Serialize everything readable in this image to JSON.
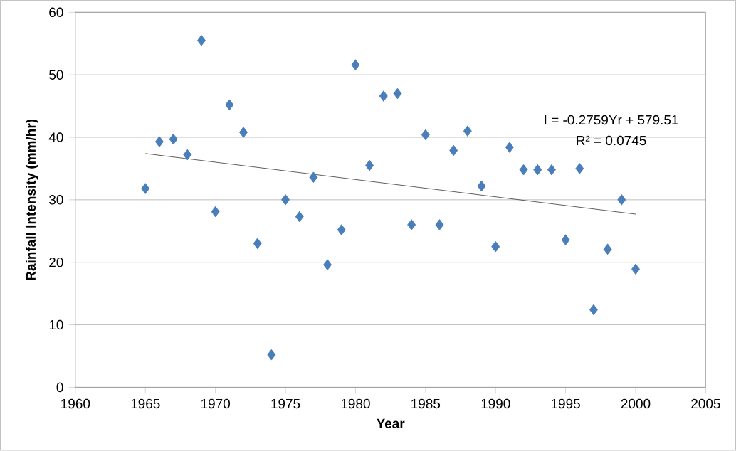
{
  "chart_data": {
    "type": "scatter",
    "xlabel": "Year",
    "ylabel": "Rainfall Intensity (mm/hr)",
    "xlim": [
      1960,
      2005
    ],
    "xticks": [
      1960,
      1965,
      1970,
      1975,
      1980,
      1985,
      1990,
      1995,
      2000,
      2005
    ],
    "ylim": [
      0,
      60
    ],
    "yticks": [
      0,
      10,
      20,
      30,
      40,
      50,
      60
    ],
    "grid": "y",
    "marker": "diamond",
    "series": [
      {
        "color": "#4a7ebb",
        "x": [
          1965,
          1966,
          1967,
          1968,
          1969,
          1970,
          1971,
          1972,
          1973,
          1974,
          1975,
          1976,
          1977,
          1978,
          1979,
          1980,
          1981,
          1982,
          1983,
          1984,
          1985,
          1986,
          1987,
          1988,
          1989,
          1990,
          1991,
          1992,
          1993,
          1994,
          1995,
          1996,
          1997,
          1998,
          1999,
          2000
        ],
        "values": [
          31.8,
          39.3,
          39.7,
          37.2,
          55.5,
          28.1,
          45.2,
          40.8,
          23,
          5.2,
          30,
          27.3,
          33.6,
          19.6,
          25.2,
          51.6,
          35.5,
          46.6,
          47,
          26,
          40.4,
          26,
          37.9,
          41,
          32.2,
          22.5,
          38.4,
          34.8,
          34.8,
          34.8,
          23.6,
          35,
          12.4,
          22.1,
          30,
          18.9
        ]
      },
      {
        "type": "line",
        "color": "#404040",
        "marker": "none",
        "x": [
          1965,
          2000
        ],
        "values": [
          37.4,
          27.7
        ]
      }
    ],
    "annotations": [
      "I = -0.2759Yr + 579.51",
      "R² = 0.0745"
    ]
  }
}
